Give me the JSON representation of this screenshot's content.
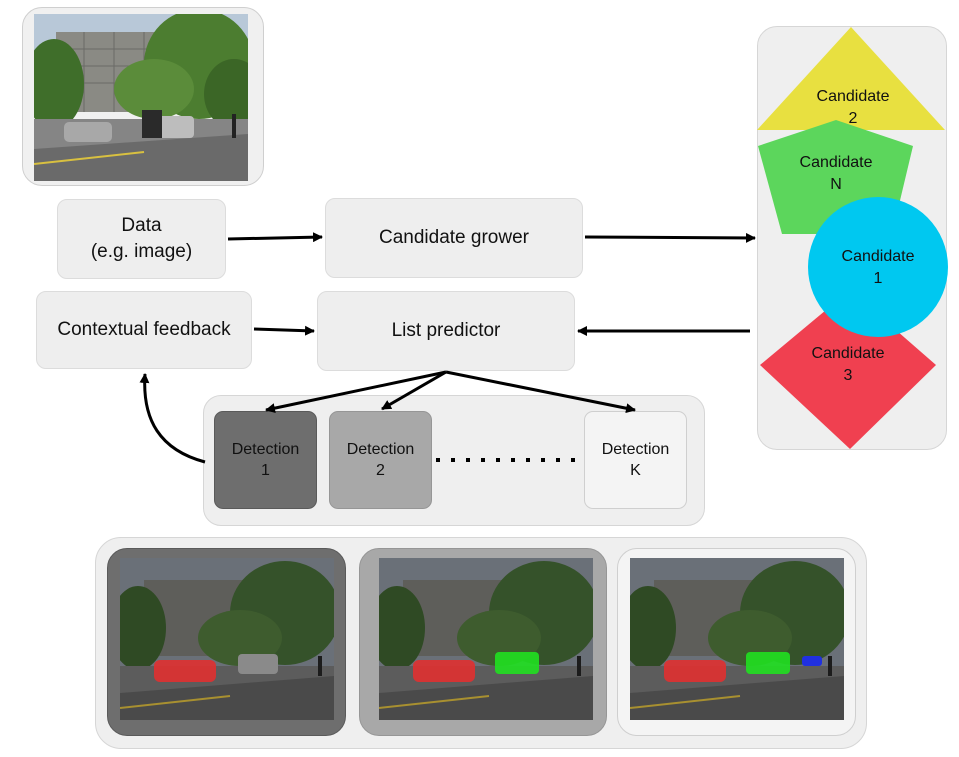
{
  "nodes": {
    "data": [
      "Data",
      "(e.g. image)"
    ],
    "grower": "Candidate grower",
    "feedback": "Contextual feedback",
    "predictor": "List predictor"
  },
  "candidates": {
    "c2": [
      "Candidate",
      "2"
    ],
    "cn": [
      "Candidate",
      "N"
    ],
    "c1": [
      "Candidate",
      "1"
    ],
    "c3": [
      "Candidate",
      "3"
    ]
  },
  "detections": {
    "d1": [
      "Detection",
      "1"
    ],
    "d2": [
      "Detection",
      "2"
    ],
    "dk": [
      "Detection",
      "K"
    ]
  },
  "colors": {
    "candidate_2": "#e8e040",
    "candidate_n": "#5cd65c",
    "candidate_1": "#00c8f0",
    "candidate_3": "#f04050",
    "detection_1": "#6e6e6e",
    "detection_2": "#a8a8a8",
    "detection_k": "#f4f4f4",
    "mask_red": "#e03030",
    "mask_green": "#20e020",
    "mask_blue": "#2030e0"
  },
  "icons": [
    "street-photo",
    "segmentation-result-photo"
  ]
}
